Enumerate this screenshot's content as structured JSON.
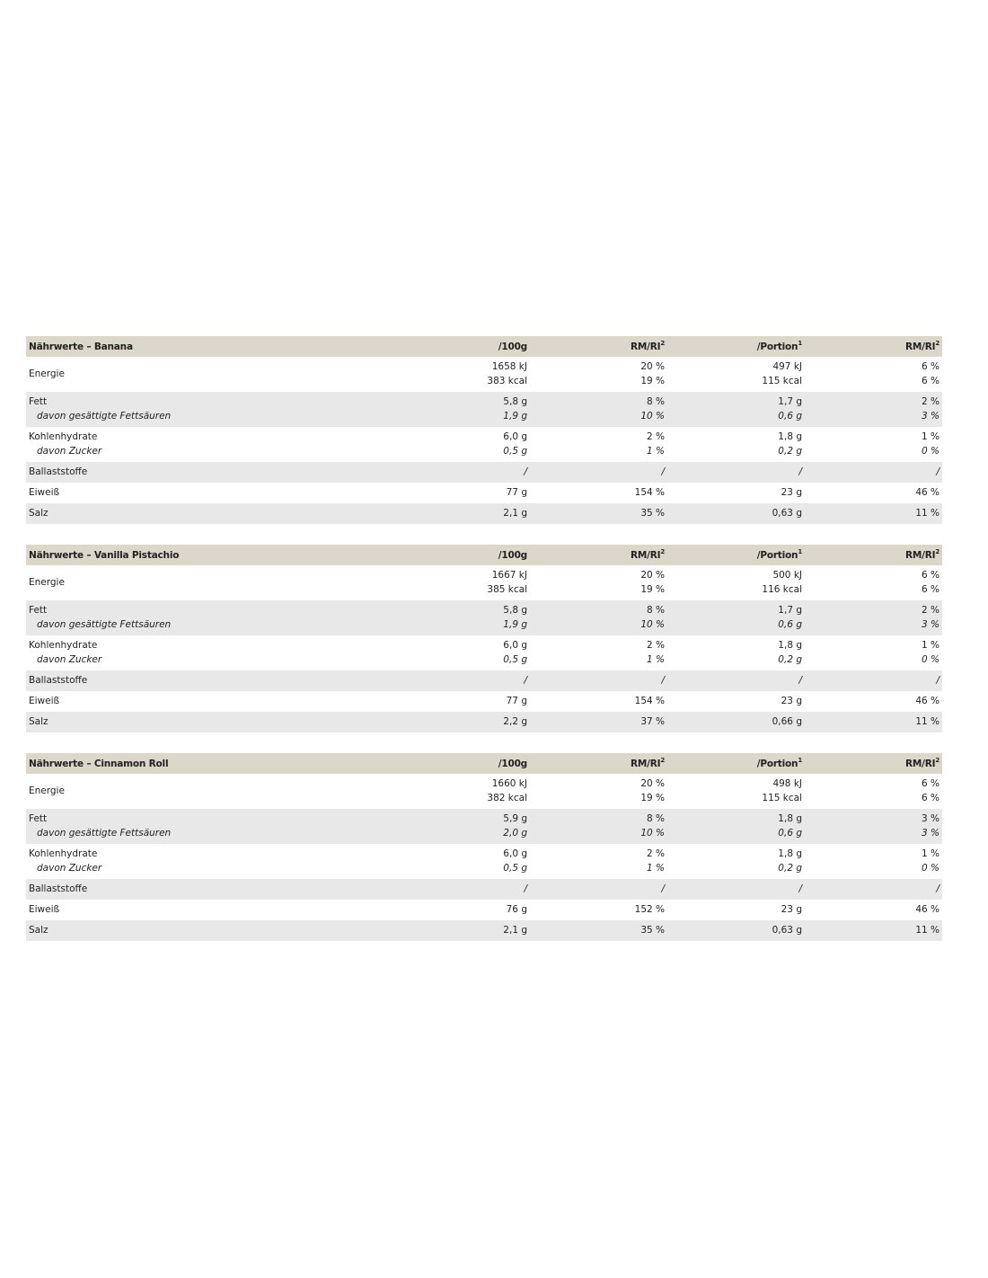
{
  "tables": [
    {
      "title": "Nährwerte – Banana",
      "headers": [
        "/100g",
        "RM/RI",
        "/Portion",
        "RM/RI"
      ],
      "header_sups": [
        "",
        "2",
        "1",
        "2"
      ],
      "rows": [
        {
          "label": "Energie",
          "lines": [
            [
              "1658 kJ",
              "20 %",
              "497 kJ",
              "6 %"
            ],
            [
              "383 kcal",
              "19 %",
              "115 kcal",
              "6 %"
            ]
          ],
          "second_italic": false
        },
        {
          "label": "Fett",
          "sublabel": "davon gesättigte Fettsäuren",
          "lines": [
            [
              "5,8 g",
              "8 %",
              "1,7 g",
              "2 %"
            ],
            [
              "1,9 g",
              "10 %",
              "0,6 g",
              "3 %"
            ]
          ],
          "second_italic": true
        },
        {
          "label": "Kohlenhydrate",
          "sublabel": "davon Zucker",
          "lines": [
            [
              "6,0 g",
              "2 %",
              "1,8 g",
              "1 %"
            ],
            [
              "0,5 g",
              "1 %",
              "0,2 g",
              "0 %"
            ]
          ],
          "second_italic": true
        },
        {
          "label": "Ballaststoffe",
          "lines": [
            [
              "/",
              "/",
              "/",
              "/"
            ]
          ]
        },
        {
          "label": "Eiweiß",
          "lines": [
            [
              "77 g",
              "154 %",
              "23 g",
              "46 %"
            ]
          ]
        },
        {
          "label": "Salz",
          "lines": [
            [
              "2,1 g",
              "35 %",
              "0,63 g",
              "11 %"
            ]
          ]
        }
      ]
    },
    {
      "title": "Nährwerte – Vanilla Pistachio",
      "headers": [
        "/100g",
        "RM/RI",
        "/Portion",
        "RM/RI"
      ],
      "header_sups": [
        "",
        "2",
        "1",
        "2"
      ],
      "rows": [
        {
          "label": "Energie",
          "lines": [
            [
              "1667 kJ",
              "20 %",
              "500 kJ",
              "6 %"
            ],
            [
              "385 kcal",
              "19 %",
              "116 kcal",
              "6 %"
            ]
          ],
          "second_italic": false
        },
        {
          "label": "Fett",
          "sublabel": "davon gesättigte Fettsäuren",
          "lines": [
            [
              "5,8 g",
              "8 %",
              "1,7 g",
              "2 %"
            ],
            [
              "1,9 g",
              "10 %",
              "0,6 g",
              "3 %"
            ]
          ],
          "second_italic": true
        },
        {
          "label": "Kohlenhydrate",
          "sublabel": "davon Zucker",
          "lines": [
            [
              "6,0 g",
              "2 %",
              "1,8 g",
              "1 %"
            ],
            [
              "0,5 g",
              "1 %",
              "0,2 g",
              "0 %"
            ]
          ],
          "second_italic": true
        },
        {
          "label": "Ballaststoffe",
          "lines": [
            [
              "/",
              "/",
              "/",
              "/"
            ]
          ]
        },
        {
          "label": "Eiweiß",
          "lines": [
            [
              "77 g",
              "154 %",
              "23 g",
              "46 %"
            ]
          ]
        },
        {
          "label": "Salz",
          "lines": [
            [
              "2,2 g",
              "37 %",
              "0,66 g",
              "11 %"
            ]
          ]
        }
      ]
    },
    {
      "title": "Nährwerte – Cinnamon Roll",
      "headers": [
        "/100g",
        "RM/RI",
        "/Portion",
        "RM/RI"
      ],
      "header_sups": [
        "",
        "2",
        "1",
        "2"
      ],
      "rows": [
        {
          "label": "Energie",
          "lines": [
            [
              "1660 kJ",
              "20 %",
              "498 kJ",
              "6 %"
            ],
            [
              "382 kcal",
              "19 %",
              "115 kcal",
              "6 %"
            ]
          ],
          "second_italic": false
        },
        {
          "label": "Fett",
          "sublabel": "davon gesättigte Fettsäuren",
          "lines": [
            [
              "5,9 g",
              "8 %",
              "1,8 g",
              "3 %"
            ],
            [
              "2,0 g",
              "10 %",
              "0,6 g",
              "3 %"
            ]
          ],
          "second_italic": true
        },
        {
          "label": "Kohlenhydrate",
          "sublabel": "davon Zucker",
          "lines": [
            [
              "6,0 g",
              "2 %",
              "1,8 g",
              "1 %"
            ],
            [
              "0,5 g",
              "1 %",
              "0,2 g",
              "0 %"
            ]
          ],
          "second_italic": true
        },
        {
          "label": "Ballaststoffe",
          "lines": [
            [
              "/",
              "/",
              "/",
              "/"
            ]
          ]
        },
        {
          "label": "Eiweiß",
          "lines": [
            [
              "76 g",
              "152 %",
              "23 g",
              "46 %"
            ]
          ]
        },
        {
          "label": "Salz",
          "lines": [
            [
              "2,1 g",
              "35 %",
              "0,63 g",
              "11 %"
            ]
          ]
        }
      ]
    }
  ]
}
